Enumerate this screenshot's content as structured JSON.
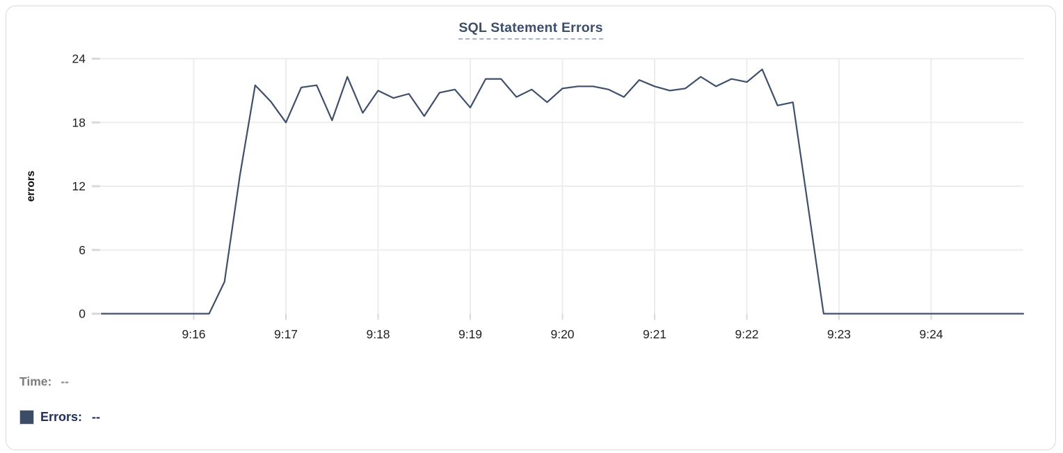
{
  "card": {
    "title": "SQL Statement Errors"
  },
  "hover_readout": {
    "time_label": "Time:",
    "time_value": "--",
    "errors_label": "Errors:",
    "errors_value": "--"
  },
  "colors": {
    "line": "#3f4e6a",
    "swatch": "#3d4c66",
    "title": "#3d4e6d",
    "title_underline": "#a6b1c6",
    "grid": "#ededed",
    "tick": "#d9d9d9",
    "axis_text": "#212121",
    "axis_label_text": "#0a0a0a",
    "time_text": "#7d7d7d",
    "errors_text": "#233057"
  },
  "chart_data": {
    "type": "line",
    "title": "SQL Statement Errors",
    "xlabel": "",
    "ylabel": "errors",
    "ylim": [
      0,
      24
    ],
    "yticks": [
      0,
      6,
      12,
      18,
      24
    ],
    "xticks": [
      "9:16",
      "9:17",
      "9:18",
      "9:19",
      "9:20",
      "9:21",
      "9:22",
      "9:23",
      "9:24"
    ],
    "grid": true,
    "legend_position": "bottom-left",
    "sample_interval_seconds": 10,
    "x": [
      "9:15:00",
      "9:15:10",
      "9:15:20",
      "9:15:30",
      "9:15:40",
      "9:15:50",
      "9:16:00",
      "9:16:10",
      "9:16:20",
      "9:16:30",
      "9:16:40",
      "9:16:50",
      "9:17:00",
      "9:17:10",
      "9:17:20",
      "9:17:30",
      "9:17:40",
      "9:17:50",
      "9:18:00",
      "9:18:10",
      "9:18:20",
      "9:18:30",
      "9:18:40",
      "9:18:50",
      "9:19:00",
      "9:19:10",
      "9:19:20",
      "9:19:30",
      "9:19:40",
      "9:19:50",
      "9:20:00",
      "9:20:10",
      "9:20:20",
      "9:20:30",
      "9:20:40",
      "9:20:50",
      "9:21:00",
      "9:21:10",
      "9:21:20",
      "9:21:30",
      "9:21:40",
      "9:21:50",
      "9:22:00",
      "9:22:10",
      "9:22:20",
      "9:22:30",
      "9:22:40",
      "9:22:50",
      "9:23:00",
      "9:23:10",
      "9:23:20",
      "9:23:30",
      "9:23:40",
      "9:23:50",
      "9:24:00",
      "9:24:10",
      "9:24:20",
      "9:24:30",
      "9:24:40",
      "9:24:50",
      "9:25:00"
    ],
    "series": [
      {
        "name": "Errors",
        "values": [
          0,
          0,
          0,
          0,
          0,
          0,
          0,
          0,
          3,
          13,
          21.5,
          20,
          18,
          21.3,
          21.5,
          18.2,
          22.3,
          18.9,
          21,
          20.3,
          20.7,
          18.6,
          20.8,
          21.1,
          19.4,
          22.1,
          22.1,
          20.4,
          21.1,
          19.9,
          21.2,
          21.4,
          21.4,
          21.1,
          20.4,
          22,
          21.4,
          21,
          21.2,
          22.3,
          21.4,
          22.1,
          21.8,
          23,
          19.6,
          19.9,
          10,
          0,
          0,
          0,
          0,
          0,
          0,
          0,
          0,
          0,
          0,
          0,
          0,
          0,
          0
        ]
      }
    ]
  }
}
